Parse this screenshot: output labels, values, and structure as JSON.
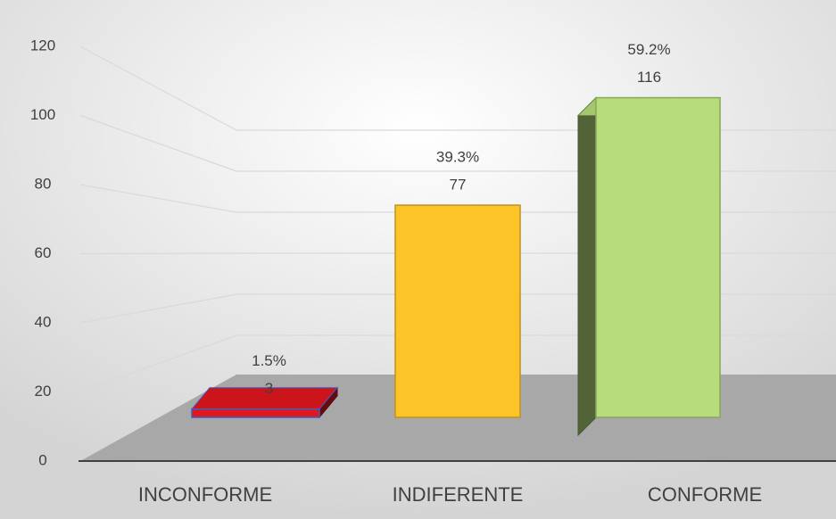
{
  "chart_data": {
    "type": "bar3d",
    "categories": [
      "INCONFORME",
      "INDIFERENTE",
      "CONFORME"
    ],
    "values": [
      3,
      77,
      116
    ],
    "percent_labels": [
      "1.5%",
      "39.3%",
      "59.2%"
    ],
    "colors": [
      "#e2171d",
      "#fcc426",
      "#b6dd7a"
    ],
    "ylim": [
      0,
      120
    ],
    "yticks": [
      0,
      20,
      40,
      60,
      80,
      100,
      120
    ],
    "grid": true
  }
}
